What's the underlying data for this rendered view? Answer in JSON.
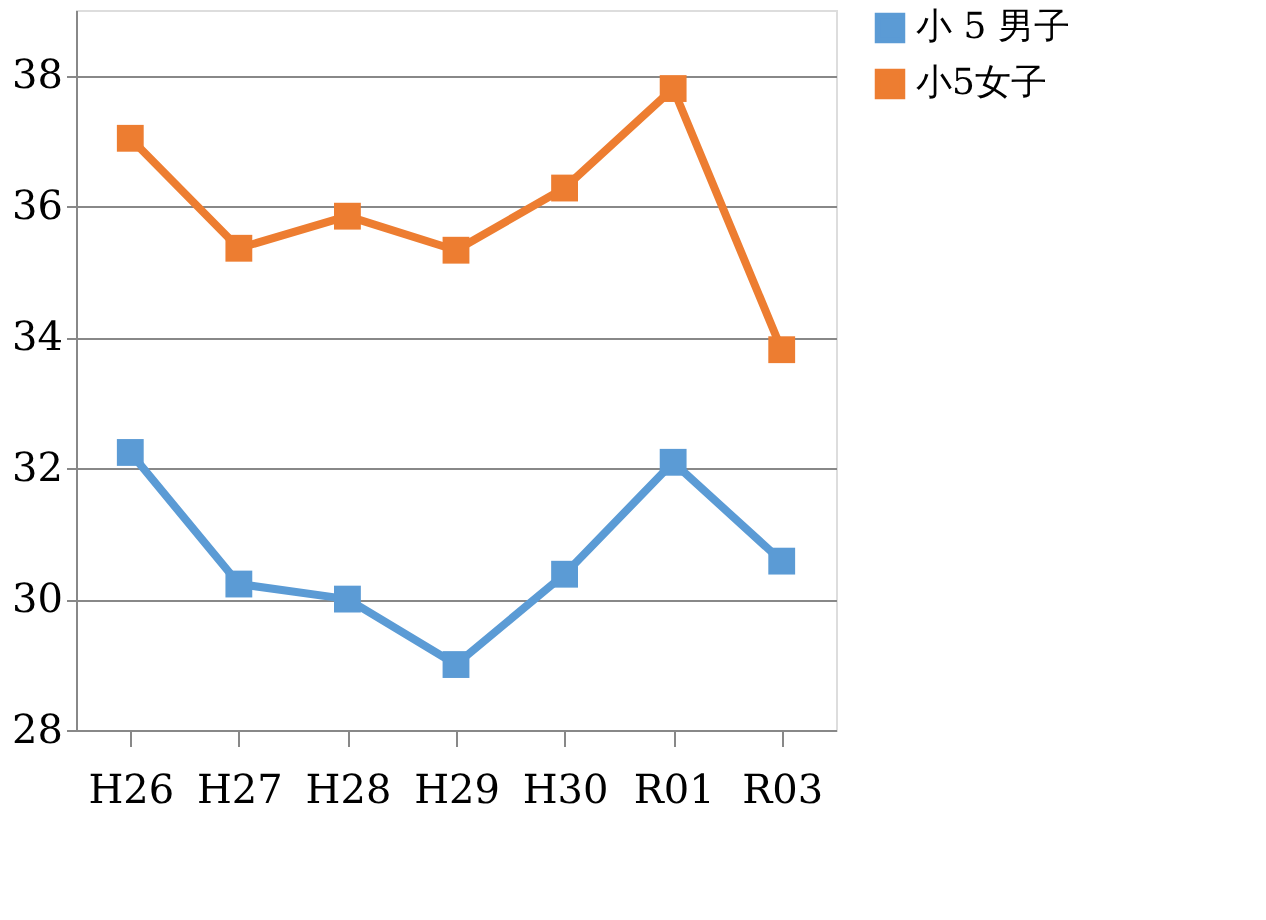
{
  "chart_data": {
    "type": "line",
    "categories": [
      "H26",
      "H27",
      "H28",
      "H29",
      "H30",
      "R01",
      "R03"
    ],
    "series": [
      {
        "name": "小 5 男子",
        "color": "#5b9bd5",
        "values": [
          32.24,
          30.23,
          30.0,
          29.0,
          30.38,
          32.09,
          30.58
        ]
      },
      {
        "name": "小5女子",
        "color": "#ed7d31",
        "values": [
          37.04,
          35.36,
          35.85,
          35.33,
          36.28,
          37.8,
          33.81
        ]
      }
    ],
    "ylim": [
      28,
      39
    ],
    "yticks": [
      28,
      30,
      32,
      34,
      36,
      38
    ],
    "grid": "y",
    "legend": "right",
    "marker": "square",
    "line_style": "solid"
  }
}
